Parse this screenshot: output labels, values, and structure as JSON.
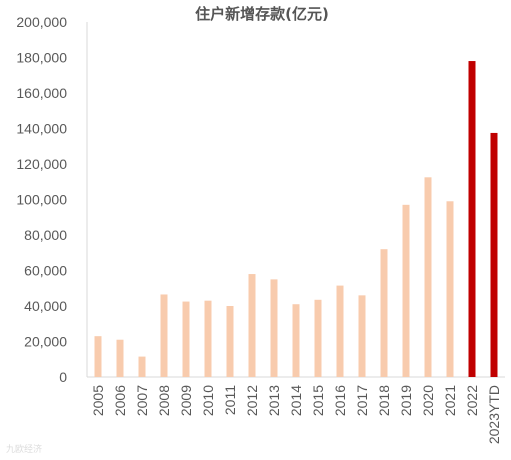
{
  "watermark": "九欧经济",
  "colors": {
    "normal": "#f8cbad",
    "highlight": "#c00000",
    "axis": "#d9d9d9",
    "text": "#595959"
  },
  "chart_data": {
    "type": "bar",
    "title": "住户新增存款(亿元)",
    "xlabel": "",
    "ylabel": "",
    "ylim": [
      0,
      200000
    ],
    "yticks": [
      0,
      20000,
      40000,
      60000,
      80000,
      100000,
      120000,
      140000,
      160000,
      180000,
      200000
    ],
    "ytick_labels": [
      "0",
      "20,000",
      "40,000",
      "60,000",
      "80,000",
      "100,000",
      "120,000",
      "140,000",
      "160,000",
      "180,000",
      "200,000"
    ],
    "grid": false,
    "legend": "none",
    "categories": [
      "2005",
      "2006",
      "2007",
      "2008",
      "2009",
      "2010",
      "2011",
      "2012",
      "2013",
      "2014",
      "2015",
      "2016",
      "2017",
      "2018",
      "2019",
      "2020",
      "2021",
      "2022",
      "2023YTD"
    ],
    "values": [
      23000,
      21000,
      11500,
      46500,
      42500,
      43000,
      40000,
      58000,
      55000,
      41000,
      43500,
      51500,
      46000,
      72000,
      97000,
      112500,
      99000,
      178000,
      137500
    ],
    "highlight": [
      false,
      false,
      false,
      false,
      false,
      false,
      false,
      false,
      false,
      false,
      false,
      false,
      false,
      false,
      false,
      false,
      false,
      true,
      true
    ]
  }
}
